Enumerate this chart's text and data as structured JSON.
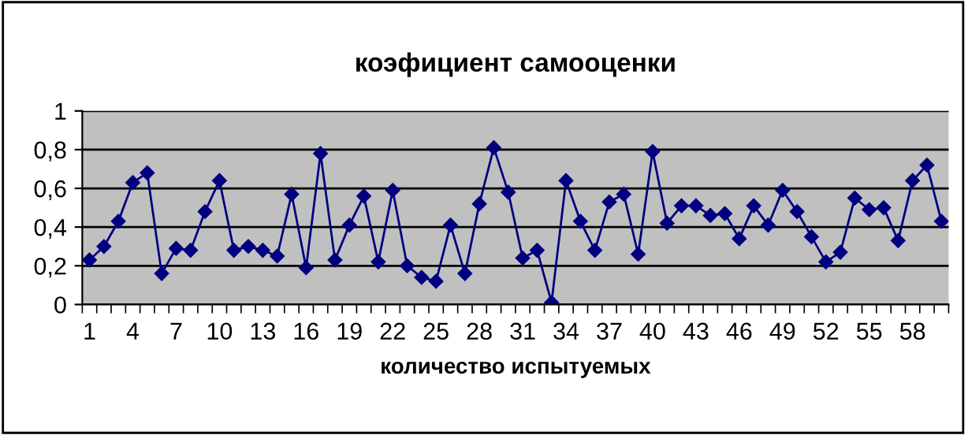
{
  "chart_data": {
    "type": "line",
    "title": "коэфициент самооценки",
    "xlabel": "количество испытуемых",
    "categories": [
      "1",
      null,
      null,
      "4",
      null,
      null,
      "7",
      null,
      null,
      "10",
      null,
      null,
      "13",
      null,
      null,
      "16",
      null,
      null,
      "19",
      null,
      null,
      "22",
      null,
      null,
      "25",
      null,
      null,
      "28",
      null,
      null,
      "31",
      null,
      null,
      "34",
      null,
      null,
      "37",
      null,
      null,
      "40",
      null,
      null,
      "43",
      null,
      null,
      "46",
      null,
      null,
      "49",
      null,
      null,
      "52",
      null,
      null,
      "55",
      null,
      null,
      "58",
      null,
      null
    ],
    "series": [
      {
        "color": "#000080",
        "values": [
          0.23,
          0.3,
          0.43,
          0.63,
          0.68,
          0.16,
          0.29,
          0.28,
          0.48,
          0.64,
          0.28,
          0.3,
          0.28,
          0.25,
          0.57,
          0.19,
          0.78,
          0.23,
          0.41,
          0.56,
          0.22,
          0.59,
          0.2,
          0.14,
          0.12,
          0.41,
          0.16,
          0.52,
          0.81,
          0.58,
          0.24,
          0.28,
          0.01,
          0.64,
          0.43,
          0.28,
          0.53,
          0.57,
          0.26,
          0.79,
          0.42,
          0.51,
          0.51,
          0.46,
          0.47,
          0.34,
          0.51,
          0.41,
          0.59,
          0.48,
          0.35,
          0.22,
          0.27,
          0.55,
          0.49,
          0.5,
          0.33,
          0.64,
          0.72,
          0.43
        ]
      }
    ],
    "ylim": [
      0,
      1
    ],
    "yticks": [
      0,
      {
        "value": 0.2,
        "label": "0,2"
      },
      {
        "value": 0.4,
        "label": "0,4"
      },
      {
        "value": 0.6,
        "label": "0,6"
      },
      {
        "value": 0.8,
        "label": "0,8"
      },
      1
    ],
    "grid": "y",
    "legend": false,
    "marker": "diamond",
    "line_style": "solid"
  }
}
